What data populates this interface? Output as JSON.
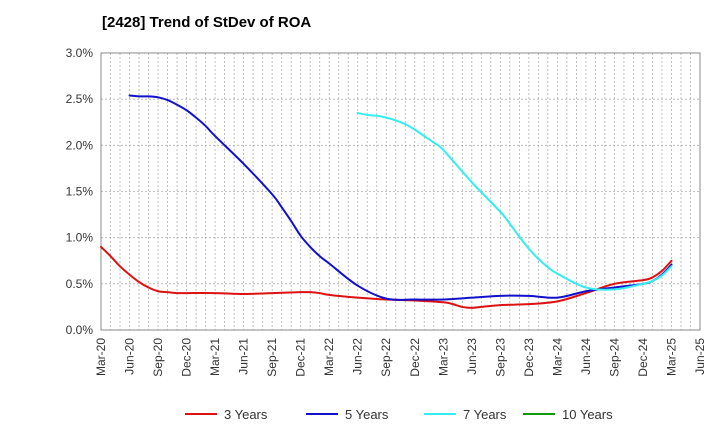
{
  "chart_data": {
    "type": "line",
    "title": "[2428]  Trend of StDev of ROA",
    "xlabel": "",
    "ylabel": "",
    "x_ticks": [
      "Mar-20",
      "Jun-20",
      "Sep-20",
      "Dec-20",
      "Mar-21",
      "Jun-21",
      "Sep-21",
      "Dec-21",
      "Mar-22",
      "Jun-22",
      "Sep-22",
      "Dec-22",
      "Mar-23",
      "Jun-23",
      "Sep-23",
      "Dec-23",
      "Mar-24",
      "Jun-24",
      "Sep-24",
      "Dec-24",
      "Mar-25",
      "Jun-25"
    ],
    "y_ticks": [
      "0.0%",
      "0.5%",
      "1.0%",
      "1.5%",
      "2.0%",
      "2.5%",
      "3.0%"
    ],
    "ylim": [
      0,
      3.0
    ],
    "grid": true,
    "legend_position": "bottom",
    "series": [
      {
        "name": "3 Years",
        "color": "#dd1111",
        "x": [
          "Mar-20",
          "Apr-20",
          "May-20",
          "Jun-20",
          "Jul-20",
          "Aug-20",
          "Sep-20",
          "Oct-20",
          "Nov-20",
          "Dec-20",
          "Mar-21",
          "Jun-21",
          "Sep-21",
          "Dec-21",
          "Jan-22",
          "Feb-22",
          "Mar-22",
          "Jun-22",
          "Sep-22",
          "Dec-22",
          "Mar-23",
          "Apr-23",
          "May-23",
          "Jun-23",
          "Jul-23",
          "Sep-23",
          "Dec-23",
          "Mar-24",
          "Jun-24",
          "Sep-24",
          "Dec-24",
          "Jan-25",
          "Feb-25",
          "Mar-25"
        ],
        "values": [
          0.9,
          0.8,
          0.69,
          0.6,
          0.52,
          0.46,
          0.42,
          0.41,
          0.4,
          0.4,
          0.4,
          0.39,
          0.4,
          0.41,
          0.41,
          0.4,
          0.38,
          0.35,
          0.33,
          0.32,
          0.3,
          0.28,
          0.25,
          0.24,
          0.25,
          0.27,
          0.28,
          0.31,
          0.4,
          0.5,
          0.54,
          0.57,
          0.64,
          0.75
        ]
      },
      {
        "name": "5 Years",
        "color": "#1111cc",
        "x": [
          "Jun-20",
          "Jul-20",
          "Aug-20",
          "Sep-20",
          "Oct-20",
          "Nov-20",
          "Dec-20",
          "Jan-21",
          "Feb-21",
          "Mar-21",
          "Jun-21",
          "Sep-21",
          "Oct-21",
          "Nov-21",
          "Dec-21",
          "Jan-22",
          "Feb-22",
          "Mar-22",
          "Jun-22",
          "Sep-22",
          "Dec-22",
          "Mar-23",
          "Jun-23",
          "Sep-23",
          "Dec-23",
          "Mar-24",
          "Jun-24",
          "Sep-24",
          "Dec-24",
          "Jan-25",
          "Feb-25",
          "Mar-25"
        ],
        "values": [
          2.54,
          2.53,
          2.53,
          2.52,
          2.49,
          2.44,
          2.38,
          2.3,
          2.21,
          2.1,
          1.8,
          1.47,
          1.33,
          1.18,
          1.02,
          0.9,
          0.8,
          0.72,
          0.48,
          0.34,
          0.33,
          0.33,
          0.35,
          0.37,
          0.37,
          0.35,
          0.42,
          0.46,
          0.5,
          0.53,
          0.6,
          0.71
        ]
      },
      {
        "name": "7 Years",
        "color": "#33eeee",
        "x": [
          "Jun-22",
          "Jul-22",
          "Aug-22",
          "Sep-22",
          "Oct-22",
          "Nov-22",
          "Dec-22",
          "Jan-23",
          "Feb-23",
          "Mar-23",
          "Jun-23",
          "Sep-23",
          "Oct-23",
          "Nov-23",
          "Dec-23",
          "Jan-24",
          "Feb-24",
          "Mar-24",
          "Jun-24",
          "Sep-24",
          "Dec-24",
          "Jan-25",
          "Feb-25",
          "Mar-25"
        ],
        "values": [
          2.35,
          2.33,
          2.32,
          2.3,
          2.27,
          2.23,
          2.17,
          2.1,
          2.03,
          1.95,
          1.6,
          1.28,
          1.15,
          1.01,
          0.88,
          0.77,
          0.68,
          0.61,
          0.46,
          0.44,
          0.5,
          0.53,
          0.59,
          0.69
        ]
      },
      {
        "name": "10 Years",
        "color": "#119911",
        "x": [],
        "values": []
      }
    ]
  }
}
